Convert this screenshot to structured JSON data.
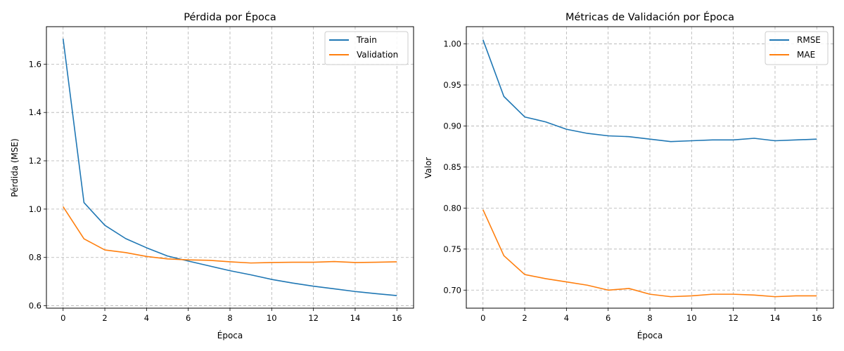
{
  "chart_data": [
    {
      "type": "line",
      "title": "Pérdida por Época",
      "xlabel": "Época",
      "ylabel": "Pérdida (MSE)",
      "xlim": [
        -0.8,
        16.8
      ],
      "ylim": [
        0.59,
        1.755
      ],
      "xticks": [
        0,
        2,
        4,
        6,
        8,
        10,
        12,
        14,
        16
      ],
      "yticks": [
        0.6,
        0.8,
        1.0,
        1.2,
        1.4,
        1.6
      ],
      "ytick_labels": [
        "0.6",
        "0.8",
        "1.0",
        "1.2",
        "1.4",
        "1.6"
      ],
      "grid": true,
      "legend_position": "top-right",
      "x": [
        0,
        1,
        2,
        3,
        4,
        5,
        6,
        7,
        8,
        9,
        10,
        11,
        12,
        13,
        14,
        15,
        16
      ],
      "series": [
        {
          "name": "Train",
          "color": "#1f77b4",
          "values": [
            1.705,
            1.027,
            0.933,
            0.878,
            0.84,
            0.806,
            0.785,
            0.765,
            0.745,
            0.728,
            0.709,
            0.694,
            0.681,
            0.67,
            0.659,
            0.65,
            0.642
          ]
        },
        {
          "name": "Validation",
          "color": "#ff7f0e",
          "values": [
            1.01,
            0.877,
            0.831,
            0.82,
            0.804,
            0.794,
            0.79,
            0.788,
            0.782,
            0.777,
            0.779,
            0.78,
            0.78,
            0.783,
            0.779,
            0.78,
            0.782
          ]
        }
      ]
    },
    {
      "type": "line",
      "title": "Métricas de Validación por Época",
      "xlabel": "Época",
      "ylabel": "Valor",
      "xlim": [
        -0.8,
        16.8
      ],
      "ylim": [
        0.678,
        1.021
      ],
      "xticks": [
        0,
        2,
        4,
        6,
        8,
        10,
        12,
        14,
        16
      ],
      "yticks": [
        0.7,
        0.75,
        0.8,
        0.85,
        0.9,
        0.95,
        1.0
      ],
      "ytick_labels": [
        "0.70",
        "0.75",
        "0.80",
        "0.85",
        "0.90",
        "0.95",
        "1.00"
      ],
      "grid": true,
      "legend_position": "top-right",
      "x": [
        0,
        1,
        2,
        3,
        4,
        5,
        6,
        7,
        8,
        9,
        10,
        11,
        12,
        13,
        14,
        15,
        16
      ],
      "series": [
        {
          "name": "RMSE",
          "color": "#1f77b4",
          "values": [
            1.005,
            0.936,
            0.911,
            0.905,
            0.896,
            0.891,
            0.888,
            0.887,
            0.884,
            0.881,
            0.882,
            0.883,
            0.883,
            0.885,
            0.882,
            0.883,
            0.884
          ]
        },
        {
          "name": "MAE",
          "color": "#ff7f0e",
          "values": [
            0.798,
            0.742,
            0.719,
            0.714,
            0.71,
            0.706,
            0.7,
            0.702,
            0.695,
            0.692,
            0.693,
            0.695,
            0.695,
            0.694,
            0.692,
            0.693,
            0.693
          ]
        }
      ]
    }
  ]
}
